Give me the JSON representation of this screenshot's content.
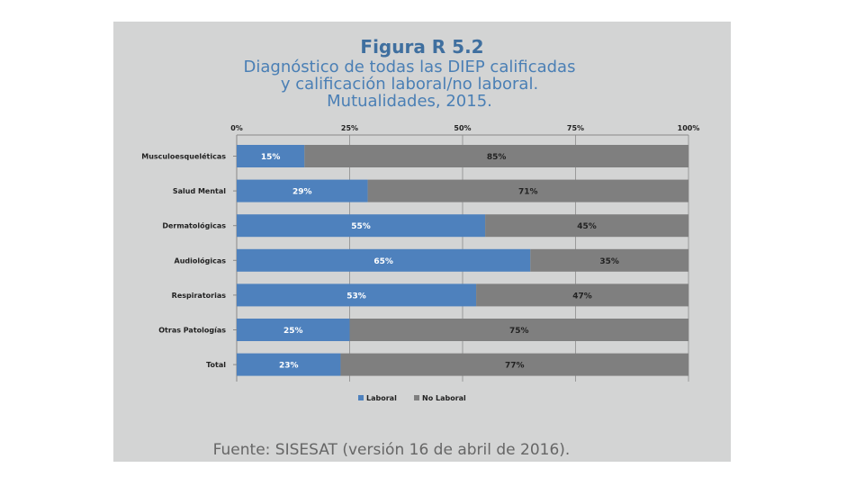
{
  "header": {
    "figure_title": "Figura R 5.2",
    "subtitle_line1": "Diagnóstico de todas las DIEP calificadas",
    "subtitle_line2": "y calificación laboral/no laboral.",
    "subtitle_line3": "Mutualidades, 2015."
  },
  "footer": {
    "source": "Fuente: SISESAT (versión 16 de abril de 2016)."
  },
  "colors": {
    "laboral": "#4e81bd",
    "no_laboral": "#7f7f7f",
    "panel": "#d3d4d4",
    "title": "#4a7fb5"
  },
  "chart_data": {
    "type": "bar",
    "orientation": "horizontal",
    "stacked": true,
    "title": "Diagnóstico de todas las DIEP calificadas y calificación laboral/no laboral. Mutualidades, 2015.",
    "categories": [
      "Musculoesqueléticas",
      "Salud Mental",
      "Dermatológicas",
      "Audiológicas",
      "Respiratorias",
      "Otras Patologías",
      "Total"
    ],
    "series": [
      {
        "name": "Laboral",
        "values": [
          15,
          29,
          55,
          65,
          53,
          25,
          23
        ],
        "labels": [
          "15%",
          "29%",
          "55%",
          "65%",
          "53%",
          "25%",
          "23%"
        ]
      },
      {
        "name": "No Laboral",
        "values": [
          85,
          71,
          45,
          35,
          47,
          75,
          77
        ],
        "labels": [
          "85%",
          "71%",
          "45%",
          "35%",
          "47%",
          "75%",
          "77%"
        ]
      }
    ],
    "xlim": [
      0,
      100
    ],
    "xticks": [
      "0%",
      "25%",
      "50%",
      "75%",
      "100%"
    ],
    "axis_position": "top",
    "legend": "bottom",
    "xlabel": "",
    "ylabel": ""
  }
}
